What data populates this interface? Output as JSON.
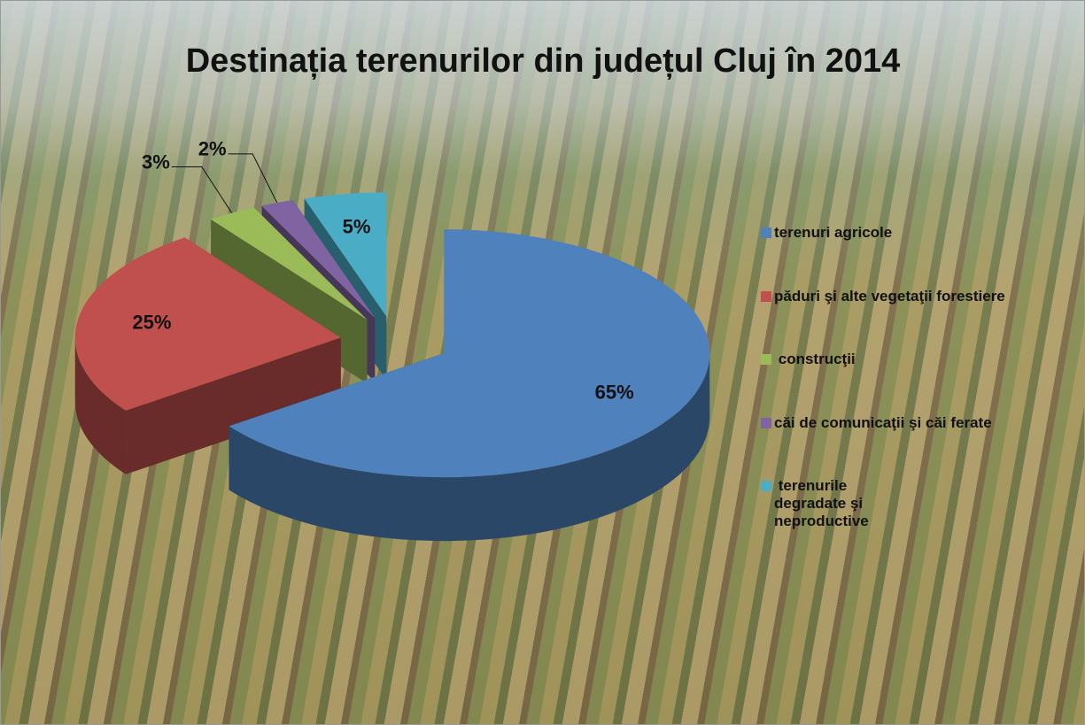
{
  "chart_data": {
    "type": "pie3d",
    "title": "Destinația terenurilor din județul Cluj în 2014",
    "categories": [
      "terenuri agricole",
      "păduri şi alte vegetaţii forestiere",
      " construcţii",
      "căi de comunicaţii şi căi ferate",
      " terenurile degradate şi neproductive"
    ],
    "values": [
      65,
      25,
      3,
      2,
      5
    ],
    "value_labels": [
      "65%",
      "25%",
      "3%",
      "2%",
      "5%"
    ],
    "colors": [
      "#4f81bd",
      "#c0504d",
      "#9bbb59",
      "#8064a2",
      "#4bacc6"
    ],
    "legend": "right"
  }
}
